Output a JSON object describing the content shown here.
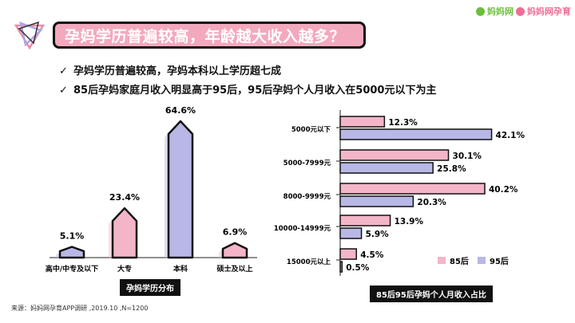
{
  "header": {
    "title": "孕妈学历普遍较高，年龄越大收入越多？",
    "brand1": "妈妈网",
    "brand2": "妈妈网孕育"
  },
  "bullets": [
    "孕妈学历普遍较高，孕妈本科以上学历超七成",
    "85后孕妈家庭月收入明显高于95后，95后孕妈个人月收入在5000元以下为主"
  ],
  "chart_labels": {
    "education": "孕妈学历分布",
    "income": "85后95后孕妈个人月收入占比"
  },
  "source": "来源：妈妈网孕育APP调研 ,2019.10 ,N=1200",
  "colors": {
    "pink": "#f3b5c7",
    "lavender": "#b8b7e6",
    "title_bg": "#f3a9bd"
  },
  "chart_data": [
    {
      "type": "bar",
      "categories": [
        "高中/中专及以下",
        "大专",
        "本科",
        "硕士及以上"
      ],
      "values": [
        5.1,
        23.4,
        64.6,
        6.9
      ],
      "value_labels": [
        "5.1%",
        "23.4%",
        "64.6%",
        "6.9%"
      ],
      "colors": [
        "#b8b7e6",
        "#f3b5c7",
        "#b8b7e6",
        "#f3b5c7"
      ],
      "title": "孕妈学历分布"
    },
    {
      "type": "bar",
      "orientation": "horizontal",
      "categories": [
        "5000元以下",
        "5000-7999元",
        "8000-9999元",
        "10000-14999元",
        "15000元以上"
      ],
      "series": [
        {
          "name": "85后",
          "values": [
            12.3,
            30.1,
            40.2,
            13.9,
            4.5
          ],
          "color": "#f3b5c7"
        },
        {
          "name": "95后",
          "values": [
            42.1,
            25.8,
            20.3,
            5.9,
            0.5
          ],
          "color": "#b8b7e6"
        }
      ],
      "title": "85后95后孕妈个人月收入占比",
      "legend": "bottom-right"
    }
  ]
}
